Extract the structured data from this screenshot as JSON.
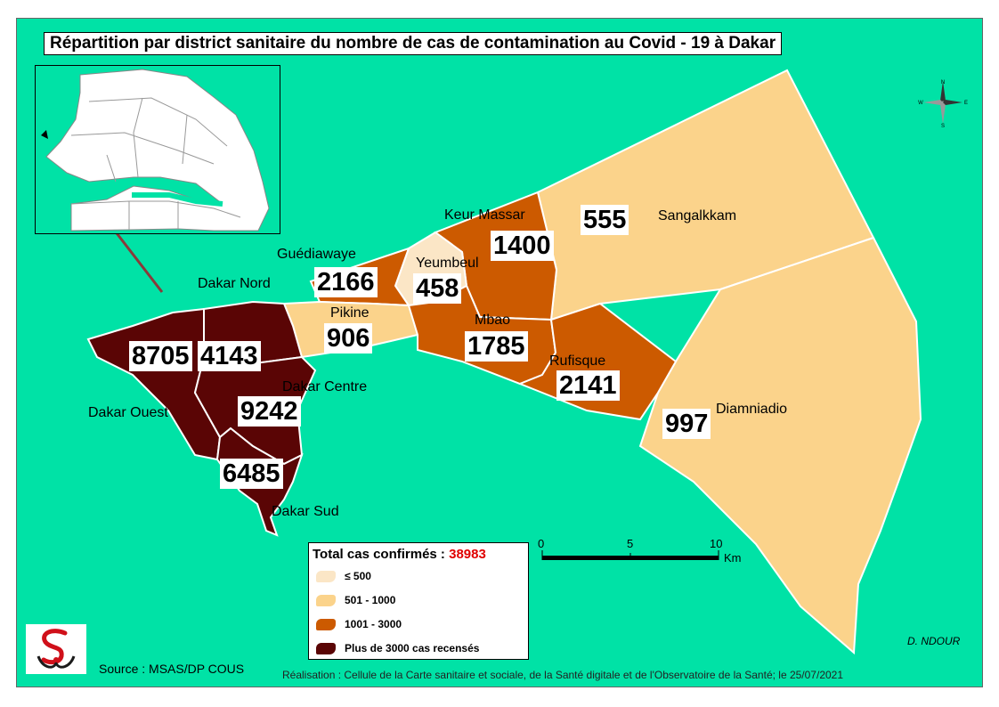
{
  "title": "Répartition par district sanitaire du nombre de cas de contamination au Covid - 19 à Dakar",
  "legend": {
    "total_label": "Total cas confirmés : ",
    "total_value": "38983",
    "classes": [
      {
        "label": "≤  500",
        "color": "#fbe6c6"
      },
      {
        "label": "501 - 1000",
        "color": "#fbd38b"
      },
      {
        "label": "1001 - 3000",
        "color": "#cc5a00"
      },
      {
        "label": "Plus de 3000 cas recensés",
        "color": "#5a0505"
      }
    ]
  },
  "districts": [
    {
      "name": "Sangalkkam",
      "cases": "555",
      "class": "501 - 1000"
    },
    {
      "name": "Keur Massar",
      "cases": "1400",
      "class": "1001 - 3000"
    },
    {
      "name": "Yeumbeul",
      "cases": "458",
      "class": "≤  500"
    },
    {
      "name": "Guédiawaye",
      "cases": "2166",
      "class": "1001 - 3000"
    },
    {
      "name": "Pikine",
      "cases": "906",
      "class": "501 - 1000"
    },
    {
      "name": "Mbao",
      "cases": "1785",
      "class": "1001 - 3000"
    },
    {
      "name": "Rufisque",
      "cases": "2141",
      "class": "1001 - 3000"
    },
    {
      "name": "Diamniadio",
      "cases": "997",
      "class": "501 - 1000"
    },
    {
      "name": "Dakar Nord",
      "cases": "4143",
      "class": "Plus de 3000 cas recensés"
    },
    {
      "name": "Dakar Ouest",
      "cases": "8705",
      "class": "Plus de 3000 cas recensés"
    },
    {
      "name": "Dakar Centre",
      "cases": "9242",
      "class": "Plus de 3000 cas recensés"
    },
    {
      "name": "Dakar Sud",
      "cases": "6485",
      "class": "Plus de 3000 cas recensés"
    }
  ],
  "scale": {
    "ticks": [
      "0",
      "5",
      "10"
    ],
    "unit": "Km"
  },
  "source": "Source : MSAS/DP COUS",
  "credit": "Réalisation : Cellule de la Carte sanitaire et sociale, de la Santé digitale  et de l'Observatoire de la Santé; le 25/07/2021",
  "author": "D. NDOUR",
  "compass": {
    "n": "N",
    "s": "S",
    "e": "E",
    "w": "W"
  },
  "colors": {
    "sea": "#00e2a6",
    "boundary": "#ffffff",
    "inset_land": "#ffffff",
    "pointer": "#8a3a3a"
  }
}
